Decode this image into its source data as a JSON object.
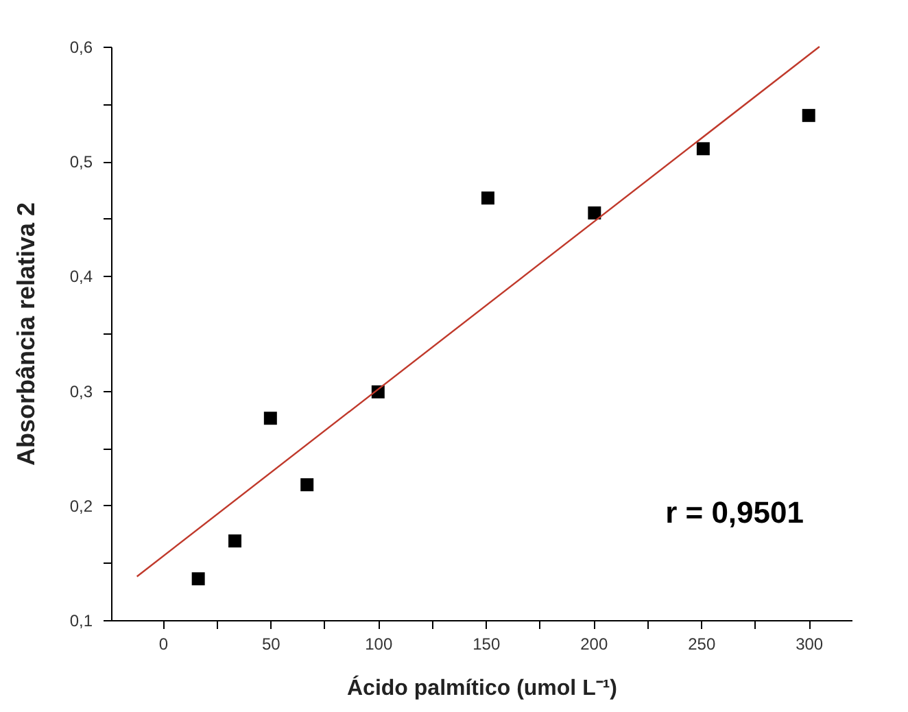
{
  "chart_data": {
    "type": "scatter",
    "xlabel": "Ácido palmítico (umol L⁻¹)",
    "ylabel": "Absorbância relativa 2",
    "xlim": [
      -24,
      320
    ],
    "ylim": [
      0.1,
      0.6
    ],
    "xticks": [
      0,
      {
        "value": 25,
        "label": null
      },
      50,
      {
        "value": 75,
        "label": null
      },
      100,
      {
        "value": 125,
        "label": null
      },
      150,
      {
        "value": 175,
        "label": null
      },
      200,
      {
        "value": 225,
        "label": null
      },
      250,
      {
        "value": 275,
        "label": null
      },
      300
    ],
    "yticks": [
      {
        "value": 0.1,
        "label": "0,1"
      },
      {
        "value": 0.15,
        "label": null
      },
      {
        "value": 0.2,
        "label": "0,2"
      },
      {
        "value": 0.25,
        "label": null
      },
      {
        "value": 0.3,
        "label": "0,3"
      },
      {
        "value": 0.35,
        "label": null
      },
      {
        "value": 0.4,
        "label": "0,4"
      },
      {
        "value": 0.45,
        "label": null
      },
      {
        "value": 0.5,
        "label": "0,5"
      },
      {
        "value": 0.55,
        "label": null
      },
      {
        "value": 0.6,
        "label": "0,6"
      }
    ],
    "grid": false,
    "series": [
      {
        "marker": "square",
        "color": "#000000",
        "x": [
          16.5,
          33.5,
          50,
          67,
          100,
          151,
          200.5,
          251,
          300
        ],
        "values": [
          0.136,
          0.169,
          0.276,
          0.218,
          0.299,
          0.468,
          0.455,
          0.511,
          0.54
        ]
      },
      {
        "type": "line",
        "color": "#c0392b",
        "line_style": "solid",
        "x": [
          -12,
          305
        ],
        "values": [
          0.138,
          0.6
        ]
      }
    ],
    "annotations": [
      "r = 0,9501"
    ]
  }
}
